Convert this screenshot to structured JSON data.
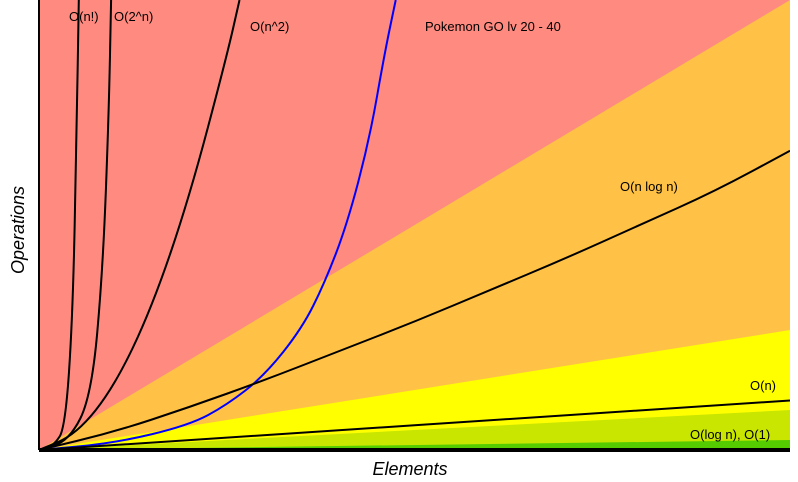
{
  "chart_data": {
    "type": "line",
    "title": "",
    "xlabel": "Elements",
    "ylabel": "Operations",
    "xlim": [
      0,
      100
    ],
    "ylim": [
      0,
      100
    ],
    "grid": false,
    "legend": "none",
    "regions": [
      {
        "name": "red",
        "color": "#ff8a80"
      },
      {
        "name": "orange",
        "color": "#ffc246"
      },
      {
        "name": "yellow",
        "color": "#ffff00"
      },
      {
        "name": "yellow-green",
        "color": "#c8e600"
      },
      {
        "name": "green",
        "color": "#55cc00"
      }
    ],
    "series": [
      {
        "name": "O(n!)",
        "color": "#000000",
        "x": [
          0,
          2,
          3.5,
          4.5,
          5,
          5.3
        ],
        "y": [
          0,
          1,
          5,
          30,
          70,
          100
        ]
      },
      {
        "name": "O(2^n)",
        "color": "#000000",
        "x": [
          0,
          4,
          7,
          8.5,
          9.3,
          9.6
        ],
        "y": [
          0,
          2,
          12,
          40,
          75,
          100
        ]
      },
      {
        "name": "O(n^2)",
        "color": "#000000",
        "x": [
          0,
          5,
          10,
          15,
          20,
          25,
          26.7
        ],
        "y": [
          0,
          3.5,
          14,
          31.5,
          56,
          87.5,
          100
        ]
      },
      {
        "name": "Pokemon GO lv 20 - 40",
        "color": "#0000ff",
        "x": [
          0,
          10,
          20,
          25,
          30,
          35,
          38,
          41,
          44,
          46,
          47.5
        ],
        "y": [
          0,
          1.5,
          5.5,
          10,
          16.5,
          27,
          37,
          50,
          69,
          88,
          100
        ]
      },
      {
        "name": "O(n log n)",
        "color": "#000000",
        "x": [
          0,
          10,
          20,
          30,
          40,
          50,
          60,
          70,
          80,
          90,
          100
        ],
        "y": [
          0,
          4,
          9.5,
          15.5,
          22,
          28.5,
          35.5,
          42.5,
          50,
          57.5,
          66.5
        ]
      },
      {
        "name": "O(n)",
        "color": "#000000",
        "x": [
          0,
          100
        ],
        "y": [
          0,
          11
        ]
      },
      {
        "name": "O(log n), O(1)",
        "color": "#000000",
        "x": [
          0,
          100
        ],
        "y": [
          0,
          0
        ]
      }
    ],
    "labels": {
      "factorial": "O(n!)",
      "exponential": "O(2^n)",
      "quadratic": "O(n^2)",
      "pokemon": "Pokemon GO lv 20 - 40",
      "nlogn": "O(n log n)",
      "linear": "O(n)",
      "logconst": "O(log n), O(1)"
    }
  }
}
